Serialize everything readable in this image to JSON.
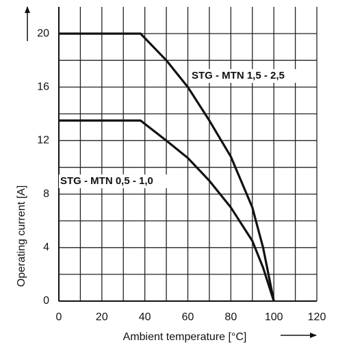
{
  "chart_data": {
    "type": "line",
    "x_label": "Ambient temperature [°C]",
    "y_label": "Operating current [A]",
    "x": [
      0,
      38,
      50,
      60,
      70,
      80,
      90,
      95,
      100
    ],
    "series": [
      {
        "name": "STG - MTN 1,5 - 2,5",
        "color": "#111111",
        "values": [
          20,
          20,
          18,
          16,
          13.5,
          10.8,
          7,
          4,
          0
        ]
      },
      {
        "name": "STG - MTN 0,5 - 1,0",
        "color": "#111111",
        "values": [
          13.5,
          13.5,
          12,
          10.7,
          9,
          7,
          4.5,
          2.5,
          0
        ]
      }
    ],
    "xlim": [
      0,
      120
    ],
    "xticks": [
      0,
      20,
      40,
      60,
      80,
      100,
      120
    ],
    "x_minor_grid": [
      10,
      30,
      50,
      70,
      90,
      110
    ],
    "ylim": [
      0,
      22
    ],
    "yticks": [
      0,
      4,
      8,
      12,
      16,
      20
    ],
    "y_minor_grid": [
      2,
      6,
      10,
      14,
      18
    ],
    "grid": true
  }
}
